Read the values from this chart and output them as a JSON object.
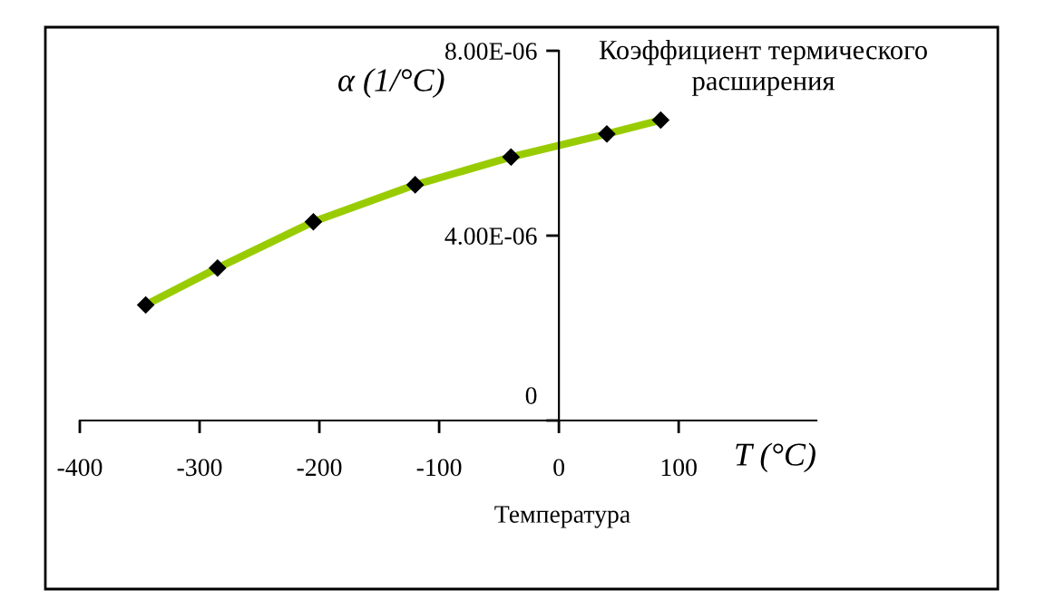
{
  "chart_data": {
    "type": "line",
    "title": "Коэффициент термического расширения",
    "xlabel": "T (°C)",
    "ylabel": "α (1/°C)",
    "annotations": [
      "Температура"
    ],
    "series": [
      {
        "color": "#99cc00",
        "x": [
          -345,
          -285,
          -205,
          -120,
          -40,
          40,
          85
        ],
        "values": [
          2.5e-06,
          3.3e-06,
          4.3e-06,
          5.1e-06,
          5.7e-06,
          6.2e-06,
          6.5e-06
        ]
      }
    ],
    "marker": "diamond",
    "xlim": [
      -400,
      215
    ],
    "xticks": [
      -400,
      -300,
      -200,
      -100,
      0,
      100
    ],
    "ylim": [
      0,
      8e-06
    ],
    "yticks": [
      {
        "value": 0,
        "label": "0"
      },
      {
        "value": 4e-06,
        "label": "4.00E-06"
      },
      {
        "value": 8e-06,
        "label": "8.00E-06"
      }
    ],
    "grid": false,
    "legend": false
  }
}
